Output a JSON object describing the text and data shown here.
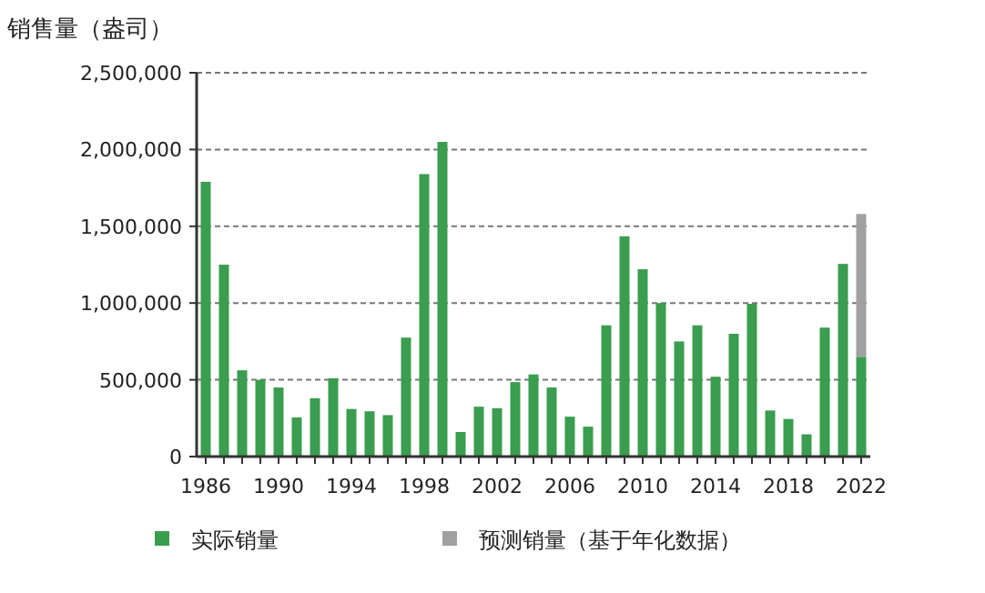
{
  "chart_data": {
    "type": "bar",
    "ylabel": "销售量（盎司）",
    "stacked": true,
    "grid": "y",
    "legend": "bottom",
    "categories": [
      "1986",
      null,
      null,
      null,
      "1990",
      null,
      null,
      null,
      "1994",
      null,
      null,
      null,
      "1998",
      null,
      null,
      null,
      "2002",
      null,
      null,
      null,
      "2006",
      null,
      null,
      null,
      "2010",
      null,
      null,
      null,
      "2014",
      null,
      null,
      null,
      "2018",
      null,
      null,
      null,
      "2022"
    ],
    "ylim": [
      0,
      2500000
    ],
    "yticks": [
      0,
      {
        "value": 500000,
        "label": "500,000"
      },
      {
        "value": 1000000,
        "label": "1,000,000"
      },
      {
        "value": 1500000,
        "label": "1,500,000"
      },
      {
        "value": 2000000,
        "label": "2,000,000"
      },
      {
        "value": 2500000,
        "label": "2,500,000"
      }
    ],
    "series": [
      {
        "name": "实际销量",
        "color": "#3a9d4f",
        "values": [
          1790000,
          1250000,
          562000,
          500000,
          450000,
          255000,
          380000,
          510000,
          310000,
          295000,
          270000,
          775000,
          1840000,
          2050000,
          160000,
          325000,
          315000,
          485000,
          535000,
          450000,
          260000,
          195000,
          855000,
          1435000,
          1220000,
          1000000,
          750000,
          855000,
          520000,
          800000,
          995000,
          300000,
          245000,
          145000,
          840000,
          1255000,
          650000
        ]
      },
      {
        "name": "预测销量（基于年化数据）",
        "color": "#a0a0a0",
        "values": [
          null,
          null,
          null,
          null,
          null,
          null,
          null,
          null,
          null,
          null,
          null,
          null,
          null,
          null,
          null,
          null,
          null,
          null,
          null,
          null,
          null,
          null,
          null,
          null,
          null,
          null,
          null,
          null,
          null,
          null,
          null,
          null,
          null,
          null,
          null,
          null,
          930000
        ]
      }
    ]
  }
}
